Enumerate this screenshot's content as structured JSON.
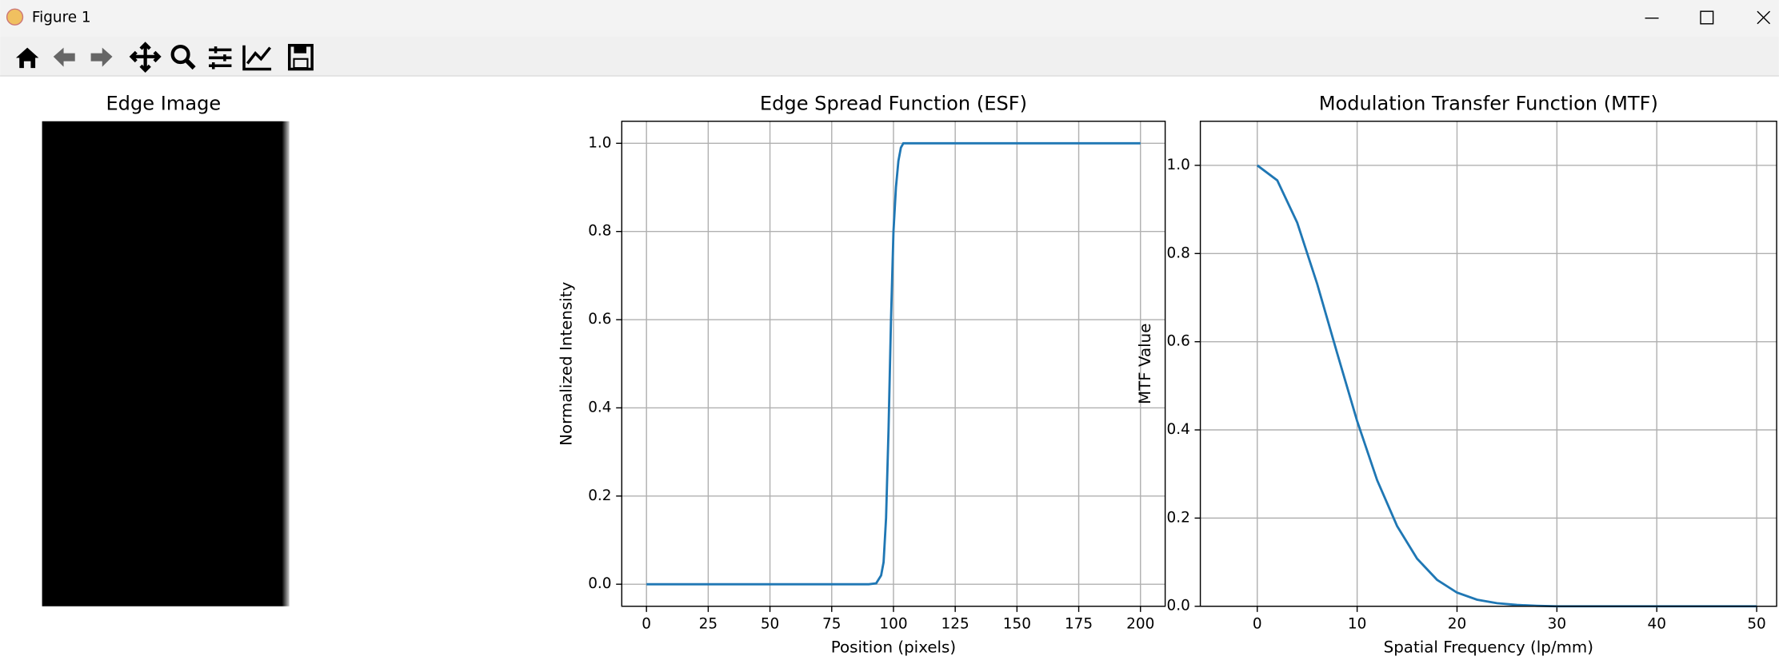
{
  "window": {
    "title": "Figure 1"
  },
  "chart_data": [
    {
      "type": "image",
      "title": "Edge Image"
    },
    {
      "type": "line",
      "title": "Edge Spread Function (ESF)",
      "xlabel": "Position (pixels)",
      "ylabel": "Normalized Intensity",
      "x": [
        0,
        25,
        50,
        75,
        90,
        93,
        95,
        96,
        97,
        98,
        99,
        100,
        101,
        102,
        103,
        104,
        105,
        107,
        110,
        125,
        150,
        175,
        200
      ],
      "series": [
        {
          "name": "ESF",
          "color": "#1f77b4",
          "values": [
            0,
            0,
            0,
            0,
            0,
            0.002,
            0.02,
            0.05,
            0.15,
            0.35,
            0.6,
            0.8,
            0.9,
            0.96,
            0.99,
            1,
            1,
            1,
            1,
            1,
            1,
            1,
            1
          ]
        }
      ],
      "xlim": [
        -10,
        210
      ],
      "ylim": [
        -0.05,
        1.05
      ],
      "xticks": [
        0,
        25,
        50,
        75,
        100,
        125,
        150,
        175,
        200
      ],
      "yticks": [
        {
          "value": 0,
          "label": "0.0"
        },
        0.2,
        0.4,
        0.6,
        0.8,
        {
          "value": 1,
          "label": "1.0"
        }
      ],
      "grid": true
    },
    {
      "type": "line",
      "title": "Modulation Transfer Function (MTF)",
      "xlabel": "Spatial Frequency (lp/mm)",
      "ylabel": "MTF Value",
      "x": [
        0,
        2,
        4,
        6,
        8,
        10,
        12,
        14,
        16,
        18,
        20,
        22,
        24,
        26,
        28,
        30,
        40,
        50
      ],
      "series": [
        {
          "name": "MTF",
          "color": "#1f77b4",
          "values": [
            1,
            0.966,
            0.87,
            0.731,
            0.574,
            0.42,
            0.286,
            0.182,
            0.108,
            0.06,
            0.031,
            0.015,
            0.007,
            0.003,
            0.001,
            0,
            0,
            0
          ]
        }
      ],
      "xlim": [
        -5.7,
        52
      ],
      "ylim": [
        0,
        1.1
      ],
      "xticks": [
        0,
        10,
        20,
        30,
        40,
        50
      ],
      "yticks": [
        {
          "value": 0,
          "label": "0.0"
        },
        0.2,
        0.4,
        0.6,
        0.8,
        {
          "value": 1,
          "label": "1.0"
        }
      ],
      "grid": true
    }
  ]
}
